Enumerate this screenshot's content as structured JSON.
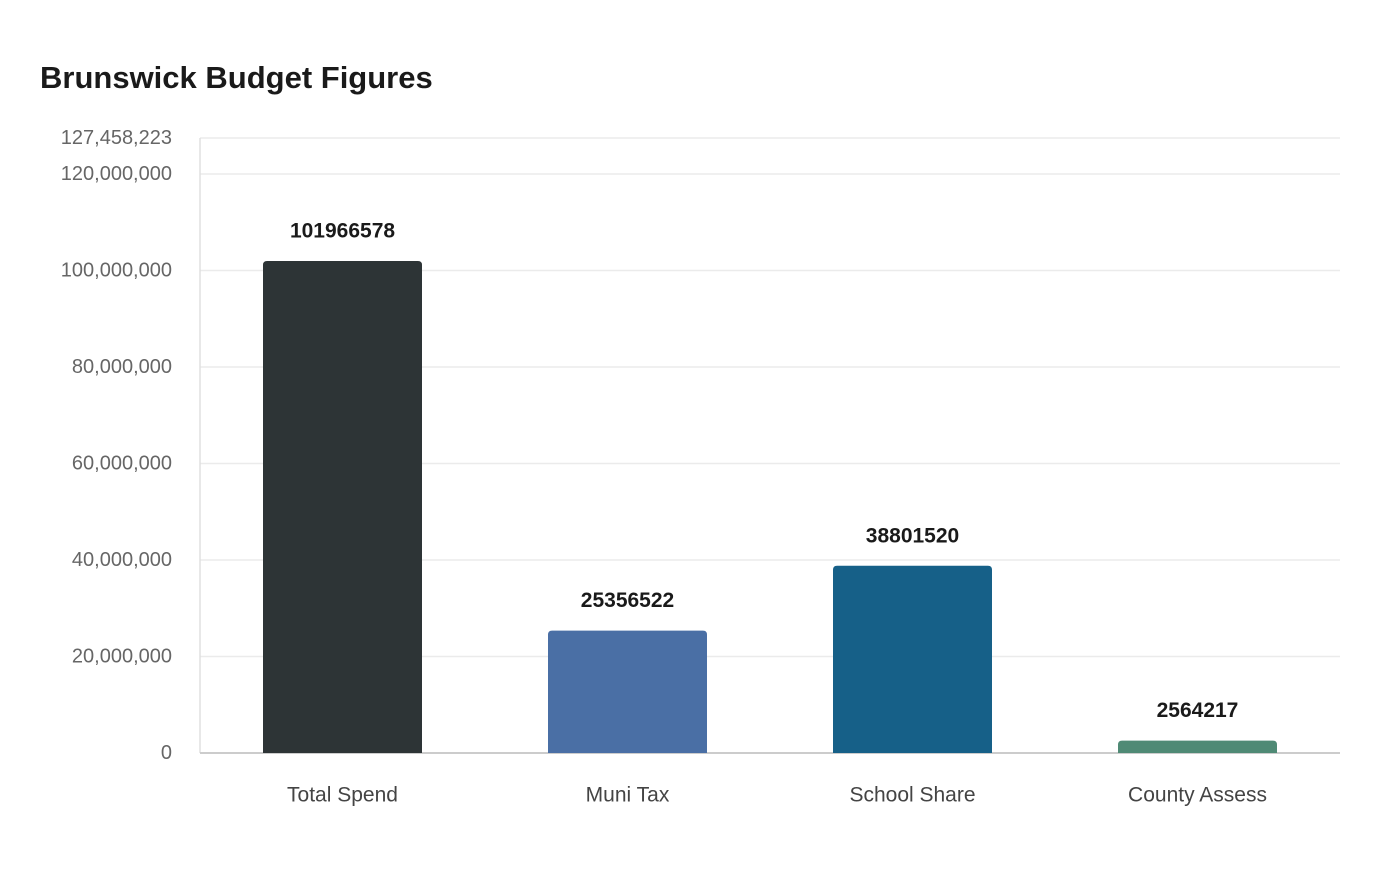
{
  "chart_data": {
    "type": "bar",
    "title": "Brunswick Budget Figures",
    "xlabel": "",
    "ylabel": "",
    "categories": [
      "Total Spend",
      "Muni Tax",
      "School Share",
      "County Assess"
    ],
    "values": [
      101966578,
      25356522,
      38801520,
      2564217
    ],
    "value_labels": [
      "101966578",
      "25356522",
      "38801520",
      "2564217"
    ],
    "bar_colors": [
      "#2d3436",
      "#4a6fa5",
      "#166088",
      "#4f8a75"
    ],
    "ylim": [
      0,
      127458223
    ],
    "yticks": [
      0,
      20000000,
      40000000,
      60000000,
      80000000,
      100000000,
      120000000,
      127458223
    ],
    "ytick_labels": [
      "0",
      "20,000,000",
      "40,000,000",
      "60,000,000",
      "80,000,000",
      "100,000,000",
      "120,000,000",
      "127,458,223"
    ],
    "grid": true,
    "legend": "none"
  }
}
